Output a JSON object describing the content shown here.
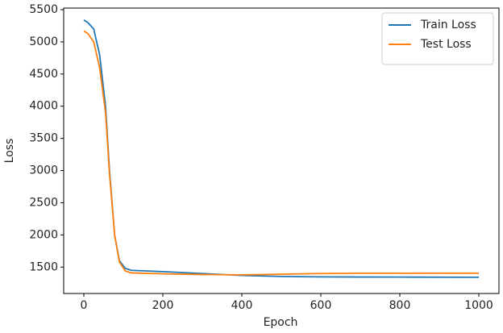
{
  "chart_data": {
    "type": "line",
    "x_label": "Epoch",
    "y_label": "Loss",
    "x": [
      0,
      10,
      25,
      40,
      55,
      65,
      78,
      90,
      105,
      120,
      200,
      300,
      400,
      500,
      600,
      700,
      800,
      1000
    ],
    "series": [
      {
        "name": "Train Loss",
        "color": "#1f77b4",
        "values": [
          5340,
          5300,
          5200,
          4800,
          4000,
          3000,
          2000,
          1600,
          1480,
          1450,
          1430,
          1400,
          1370,
          1355,
          1348,
          1346,
          1345,
          1342
        ]
      },
      {
        "name": "Test Loss",
        "color": "#ff7f0e",
        "values": [
          5170,
          5130,
          5000,
          4600,
          3900,
          2950,
          2000,
          1580,
          1440,
          1410,
          1395,
          1385,
          1380,
          1390,
          1400,
          1405,
          1405,
          1405
        ]
      }
    ],
    "xlim": [
      -51,
      1051
    ],
    "ylim": [
      1090,
      5525
    ],
    "xticks": [
      0,
      200,
      400,
      600,
      800,
      1000
    ],
    "yticks": [
      1500,
      2000,
      2500,
      3000,
      3500,
      4000,
      4500,
      5000,
      5500
    ],
    "grid": false,
    "legend": "upper right"
  }
}
